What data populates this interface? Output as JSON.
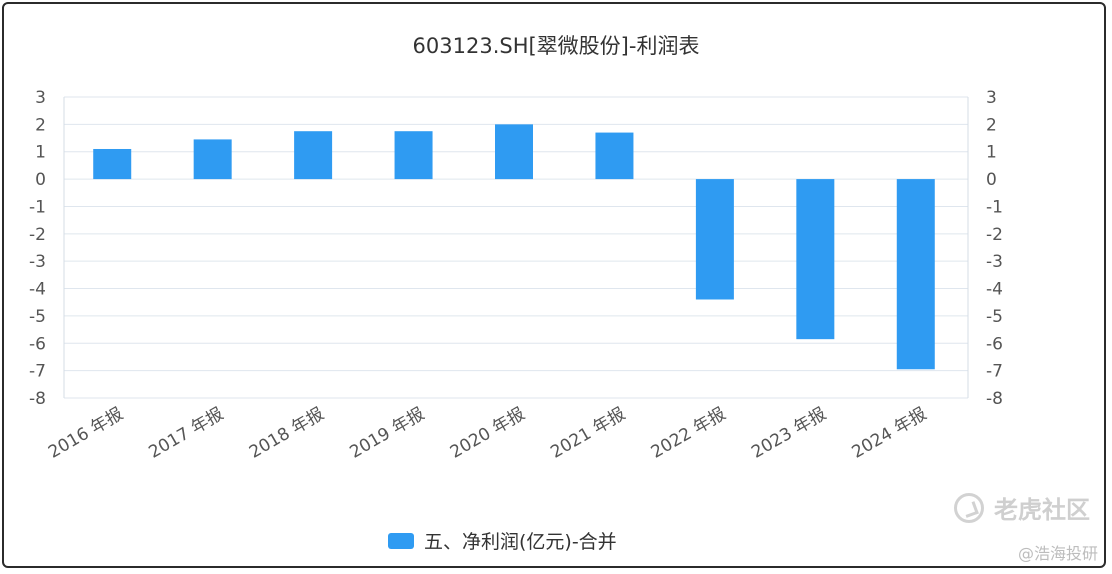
{
  "chart_data": {
    "type": "bar",
    "title": "603123.SH[翠微股份]-利润表",
    "categories": [
      "2016 年报",
      "2017 年报",
      "2018 年报",
      "2019 年报",
      "2020 年报",
      "2021 年报",
      "2022 年报",
      "2023 年报",
      "2024 年报"
    ],
    "series": [
      {
        "name": "五、净利润(亿元)-合并",
        "values": [
          1.1,
          1.45,
          1.75,
          1.75,
          2.0,
          1.7,
          -4.4,
          -5.85,
          -6.95
        ]
      }
    ],
    "ylim": [
      -8,
      3
    ],
    "yticks": [
      "3",
      "2",
      "1",
      "0",
      "-1",
      "-2",
      "-3",
      "-4",
      "-5",
      "-6",
      "-7",
      "-8"
    ],
    "grid": true,
    "legend_position": "bottom-center",
    "bar_color": "#2f9bf2"
  },
  "watermark": {
    "brand": "老虎社区",
    "author": "@浩海投研"
  }
}
